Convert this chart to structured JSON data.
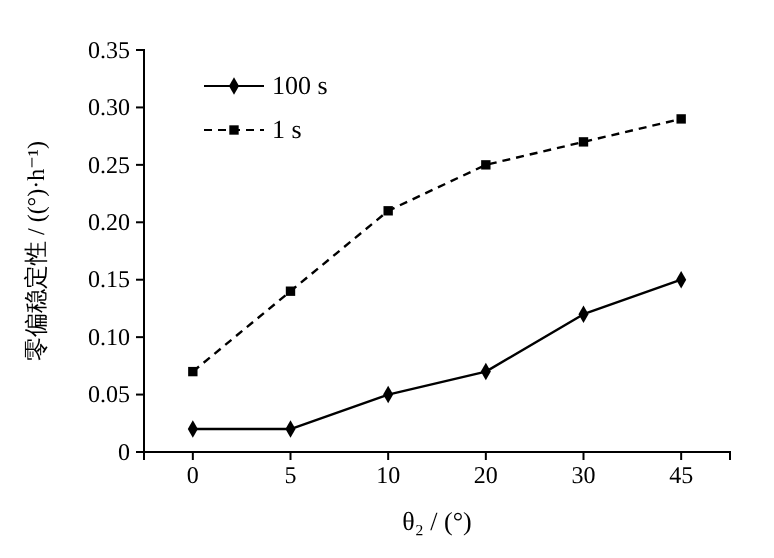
{
  "chart_data": {
    "type": "line",
    "xlabel": "θ₂ / (°)",
    "ylabel": "零偏稳定性 / ((°)·h⁻¹)",
    "categories": [
      "0",
      "5",
      "10",
      "20",
      "30",
      "45"
    ],
    "series": [
      {
        "name": "100 s",
        "color": "#000000",
        "values": [
          0.02,
          0.02,
          0.05,
          0.07,
          0.12,
          0.15
        ],
        "marker": "diamond",
        "line_style": "solid"
      },
      {
        "name": "1 s",
        "color": "#000000",
        "values": [
          0.07,
          0.14,
          0.21,
          0.25,
          0.27,
          0.29
        ],
        "marker": "square",
        "line_style": "dashed"
      }
    ],
    "ylim": [
      0,
      0.35
    ],
    "yticks": [
      0,
      0.05,
      {
        "value": 0.1,
        "label": "0.10"
      },
      0.15,
      {
        "value": 0.2,
        "label": "0.20"
      },
      0.25,
      {
        "value": 0.3,
        "label": "0.30"
      },
      0.35
    ],
    "legend": "top left",
    "grid": false
  }
}
